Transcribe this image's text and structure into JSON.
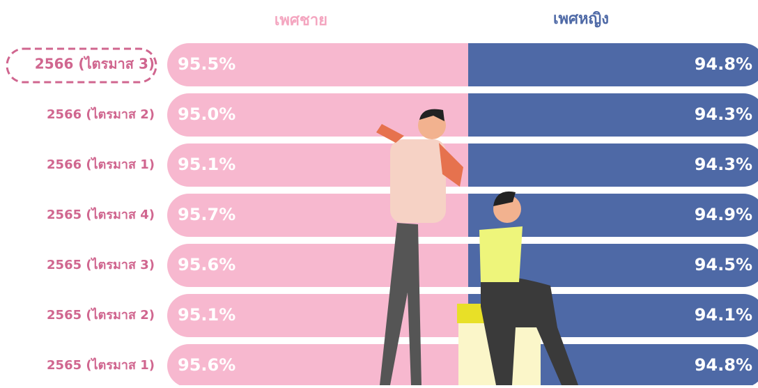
{
  "chart_data": {
    "type": "split",
    "categories": [
      "2566 (ไตรมาส 3)",
      "2566 (ไตรมาส 2)",
      "2566 (ไตรมาส 1)",
      "2565 (ไตรมาส 4)",
      "2565 (ไตรมาส 3)",
      "2565 (ไตรมาส 2)",
      "2565 (ไตรมาส 1)"
    ],
    "series": [
      {
        "name": "เพศชาย",
        "color": "#f7b8cf",
        "values": [
          95.5,
          95.0,
          95.1,
          95.7,
          95.6,
          95.1,
          95.6
        ],
        "value_labels": [
          "95.5%",
          "95.0%",
          "95.1%",
          "95.7%",
          "95.6%",
          "95.1%",
          "95.6%"
        ]
      },
      {
        "name": "เพศหญิง",
        "color": "#4e69a6",
        "values": [
          94.8,
          94.3,
          94.3,
          94.9,
          94.5,
          94.1,
          94.8
        ],
        "value_labels": [
          "94.8%",
          "94.3%",
          "94.3%",
          "94.9%",
          "94.5%",
          "94.1%",
          "94.8%"
        ]
      }
    ]
  }
}
